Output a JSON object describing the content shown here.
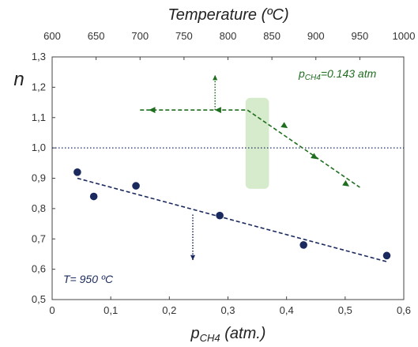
{
  "chart_data": {
    "type": "scatter",
    "top_axis_title": "Temperature (ºC)",
    "top_axis_range": [
      600,
      1000
    ],
    "top_ticks": [
      "600",
      "650",
      "700",
      "750",
      "800",
      "850",
      "900",
      "950",
      "1000"
    ],
    "xlabel_main": "p",
    "xlabel_sub": "CH4",
    "xlabel_tail": " (atm.)",
    "xlim": [
      0,
      0.6
    ],
    "x_ticks": [
      "0",
      "0,1",
      "0,2",
      "0,3",
      "0,4",
      "0,5",
      "0,6"
    ],
    "ylabel": "n",
    "ylim": [
      0.5,
      1.3
    ],
    "y_ticks": [
      "0,5",
      "0,6",
      "0,7",
      "0,8",
      "0,9",
      "1,0",
      "1,1",
      "1,2",
      "1,3"
    ],
    "reference_line_y": 1.0,
    "grid": false,
    "series": [
      {
        "label": "T= 950 ºC",
        "color": "#1b2a5e",
        "x_axis": "bottom",
        "points": [
          {
            "x": 0.043,
            "y": 0.92
          },
          {
            "x": 0.071,
            "y": 0.84
          },
          {
            "x": 0.143,
            "y": 0.875
          },
          {
            "x": 0.286,
            "y": 0.777
          },
          {
            "x": 0.429,
            "y": 0.68
          },
          {
            "x": 0.571,
            "y": 0.645
          }
        ],
        "fit": [
          {
            "x": 0.043,
            "y": 0.9
          },
          {
            "x": 0.571,
            "y": 0.625
          }
        ]
      },
      {
        "label_main": "p",
        "label_sub": "CH4",
        "label_tail": "=0.143 atm",
        "color": "#1f6e1f",
        "x_axis": "top",
        "path": [
          {
            "t": 700,
            "y": 1.125
          },
          {
            "t": 822,
            "y": 1.125
          },
          {
            "t": 950,
            "y": 0.87
          }
        ],
        "arrows": [
          {
            "t": 710,
            "y": 1.125,
            "dir": "left"
          },
          {
            "t": 785,
            "y": 1.125,
            "dir": "left"
          },
          {
            "t": 868,
            "y": 1.065,
            "dir": "down-right"
          },
          {
            "t": 902,
            "y": 0.963,
            "dir": "down-right"
          },
          {
            "t": 938,
            "y": 0.873,
            "dir": "down-right"
          }
        ]
      }
    ],
    "shaded_region": {
      "x_from": 0.33,
      "x_to": 0.37,
      "y_from": 0.865,
      "y_to": 1.165,
      "color": "#d6ebcc"
    },
    "axis_indicator_arrows": [
      {
        "x": 0.278,
        "y_from": 1.125,
        "y_to": 1.24,
        "dir": "up",
        "color": "#1f6e1f"
      },
      {
        "x": 0.24,
        "y_from": 0.78,
        "y_to": 0.63,
        "dir": "down",
        "color": "#1b2a5e"
      }
    ]
  }
}
